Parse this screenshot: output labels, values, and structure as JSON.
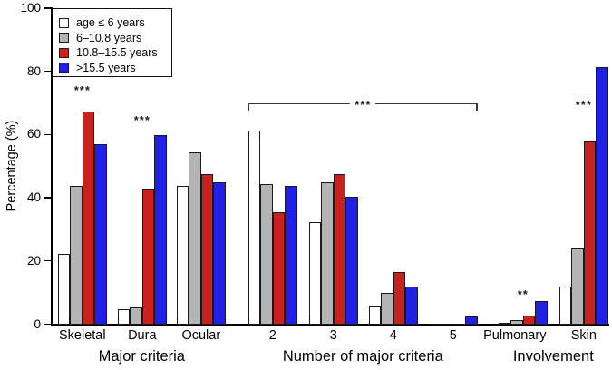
{
  "chart_data": {
    "type": "bar",
    "title": "",
    "ylabel": "Percentage (%)",
    "ylim": [
      0,
      100
    ],
    "yticks": [
      0,
      20,
      40,
      60,
      80,
      100
    ],
    "grid": false,
    "legend_position": "top-left",
    "legend": [
      {
        "label": "age ≤ 6 years",
        "color": "#ffffff"
      },
      {
        "label": "6–10.8 years",
        "color": "#b4b4b4"
      },
      {
        "label": "10.8–15.5 years",
        "color": "#c9211d"
      },
      {
        "label": ">15.5 years",
        "color": "#2020e6"
      }
    ],
    "categories": [
      "Skeletal",
      "Dura",
      "Ocular",
      "2",
      "3",
      "4",
      "5",
      "Pulmonary",
      "Skin"
    ],
    "sections": [
      {
        "label": "Major criteria",
        "categories": [
          "Skeletal",
          "Dura",
          "Ocular"
        ]
      },
      {
        "label": "Number of major criteria",
        "categories": [
          "2",
          "3",
          "4",
          "5"
        ]
      },
      {
        "label": "Involvement",
        "categories": [
          "Pulmonary",
          "Skin"
        ]
      }
    ],
    "series": [
      {
        "name": "age ≤ 6 years",
        "color": "#ffffff",
        "values": [
          22.5,
          5,
          44,
          61.5,
          32.5,
          6,
          0,
          0.5,
          12
        ]
      },
      {
        "name": "6–10.8 years",
        "color": "#b4b4b4",
        "values": [
          44,
          5.5,
          54.5,
          44.5,
          45,
          10,
          0,
          1.5,
          24
        ]
      },
      {
        "name": "10.8–15.5 years",
        "color": "#c9211d",
        "values": [
          67.5,
          43,
          47.5,
          35.5,
          47.5,
          16.5,
          0,
          3,
          58
        ]
      },
      {
        "name": ">15.5 years",
        "color": "#2020e6",
        "values": [
          57,
          60,
          45,
          44,
          40.5,
          12,
          2.5,
          7.5,
          81.5
        ]
      }
    ],
    "annotations": [
      {
        "type": "stars",
        "text": "***",
        "over": "Skeletal",
        "y": 74.5
      },
      {
        "type": "stars",
        "text": "***",
        "over": "Dura",
        "y": 65
      },
      {
        "type": "bracket",
        "text": "***",
        "from": "2",
        "to": "5",
        "y": 70,
        "tick_drop": 2.3
      },
      {
        "type": "stars",
        "text": "**",
        "over": "Pulmonary",
        "y": 10
      },
      {
        "type": "stars",
        "text": "***",
        "over": "Skin",
        "y": 70
      }
    ],
    "colors": {
      "axis": "#000000",
      "bar_border": "#1a1a1a",
      "stars": "#222222"
    }
  }
}
